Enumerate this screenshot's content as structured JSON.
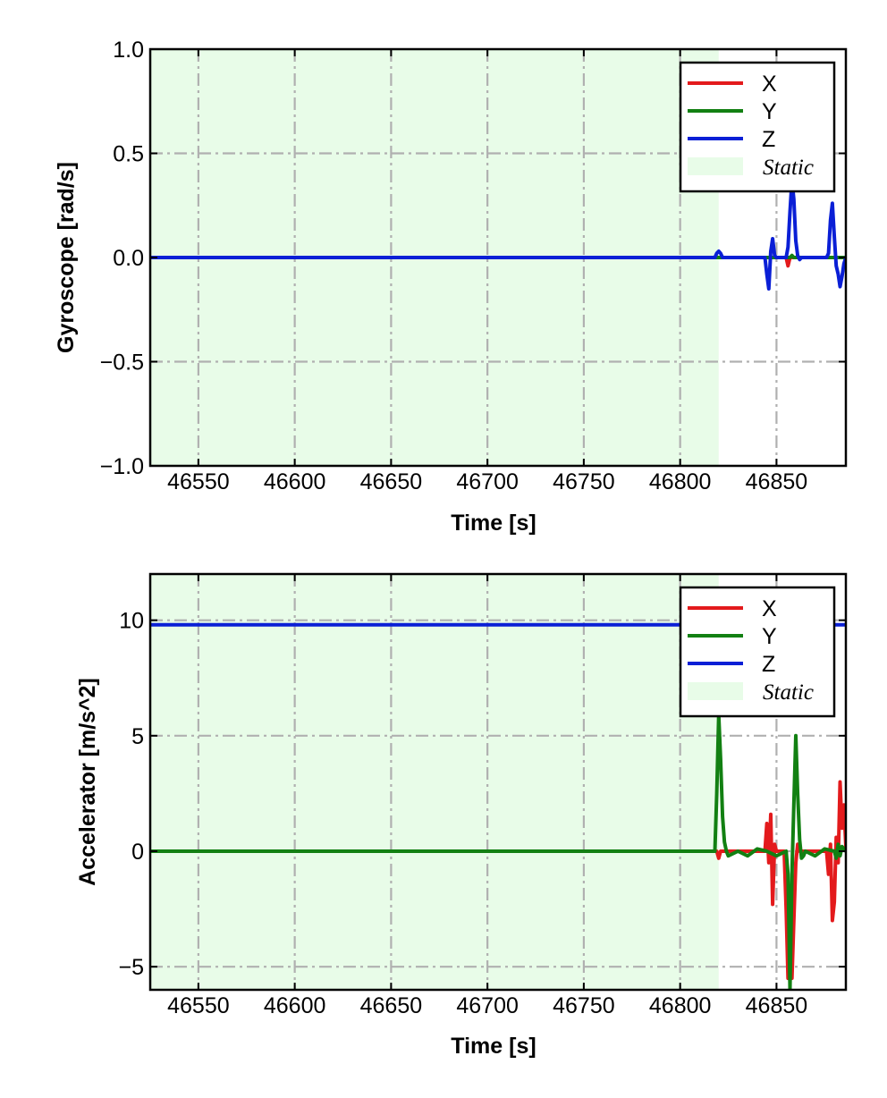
{
  "chart_data": [
    {
      "type": "line",
      "id": "gyro",
      "xlabel": "Time [s]",
      "ylabel": "Gyroscope [rad/s]",
      "xlim": [
        46525,
        46886
      ],
      "ylim": [
        -1.0,
        1.0
      ],
      "x_ticks": [
        46550,
        46600,
        46650,
        46700,
        46750,
        46800,
        46850
      ],
      "x_tick_labels": [
        "46550",
        "46600",
        "46650",
        "46700",
        "46750",
        "46800",
        "46850"
      ],
      "y_ticks": [
        1.0,
        0.5,
        0.0,
        -0.5,
        -1.0
      ],
      "y_tick_labels": [
        "1.0",
        "0.5",
        "0.0",
        "−0.5",
        "−1.0"
      ],
      "grid": true,
      "legend_position": "top-right",
      "static_region": {
        "label": "Static",
        "x_start": 46525,
        "x_end": 46820,
        "color": "#e8fce8"
      },
      "series": [
        {
          "name": "X",
          "color": "#e31a1c",
          "x": [
            46525,
            46820,
            46846,
            46848,
            46850,
            46855,
            46856,
            46857,
            46860,
            46878,
            46880,
            46882,
            46886
          ],
          "y": [
            0.0,
            0.0,
            0.0,
            0.0,
            0.0,
            0.0,
            -0.04,
            0.0,
            0.0,
            0.0,
            0.0,
            0.0,
            0.0
          ]
        },
        {
          "name": "Y",
          "color": "#128012",
          "x": [
            46525,
            46820,
            46857,
            46858,
            46859,
            46886
          ],
          "y": [
            0.0,
            0.0,
            0.0,
            0.01,
            0.0,
            0.0
          ]
        },
        {
          "name": "Z",
          "color": "#0a1fd6",
          "x": [
            46525,
            46818,
            46819,
            46820,
            46821,
            46822,
            46844,
            46845,
            46846,
            46847,
            46848,
            46849,
            46850,
            46855,
            46856,
            46857,
            46858,
            46859,
            46860,
            46861,
            46862,
            46863,
            46876,
            46877,
            46878,
            46879,
            46880,
            46881,
            46882,
            46883,
            46884,
            46885,
            46886
          ],
          "y": [
            0.0,
            0.0,
            0.02,
            0.03,
            0.02,
            0.0,
            0.0,
            -0.08,
            -0.15,
            0.03,
            0.09,
            0.01,
            0.0,
            0.0,
            0.05,
            0.22,
            0.37,
            0.28,
            0.08,
            0.01,
            -0.01,
            0.0,
            0.0,
            0.02,
            0.18,
            0.26,
            0.1,
            -0.04,
            -0.08,
            -0.14,
            -0.09,
            -0.03,
            0.0
          ]
        }
      ]
    },
    {
      "type": "line",
      "id": "accel",
      "xlabel": "Time [s]",
      "ylabel": "Accelerator [m/s^2]",
      "xlim": [
        46525,
        46886
      ],
      "ylim": [
        -6,
        12
      ],
      "x_ticks": [
        46550,
        46600,
        46650,
        46700,
        46750,
        46800,
        46850
      ],
      "x_tick_labels": [
        "46550",
        "46600",
        "46650",
        "46700",
        "46750",
        "46800",
        "46850"
      ],
      "y_ticks": [
        10,
        5,
        0,
        -5
      ],
      "y_tick_labels": [
        "10",
        "5",
        "0",
        "−5"
      ],
      "grid": true,
      "legend_position": "top-right",
      "static_region": {
        "label": "Static",
        "x_start": 46525,
        "x_end": 46820,
        "color": "#e8fce8"
      },
      "series": [
        {
          "name": "X",
          "color": "#e31a1c",
          "x": [
            46525,
            46819,
            46820,
            46821,
            46844,
            46845,
            46846,
            46847,
            46848,
            46849,
            46850,
            46854,
            46855,
            46856,
            46857,
            46858,
            46859,
            46860,
            46861,
            46862,
            46876,
            46877,
            46878,
            46879,
            46880,
            46881,
            46882,
            46883,
            46884,
            46885,
            46886
          ],
          "y": [
            0.0,
            0.0,
            -0.3,
            0.0,
            0.0,
            1.2,
            -0.5,
            1.6,
            -2.3,
            0.3,
            0.0,
            0.0,
            -2.5,
            -5.5,
            -2.0,
            -5.5,
            -3.0,
            -0.5,
            0.3,
            0.0,
            0.0,
            -1.0,
            0.3,
            -3.0,
            -2.2,
            0.6,
            -0.5,
            3.0,
            1.0,
            2.0,
            0.2
          ]
        },
        {
          "name": "Y",
          "color": "#128012",
          "x": [
            46525,
            46818,
            46819,
            46820,
            46821,
            46822,
            46823,
            46824,
            46825,
            46830,
            46835,
            46840,
            46845,
            46850,
            46855,
            46856,
            46857,
            46858,
            46859,
            46860,
            46861,
            46862,
            46863,
            46864,
            46865,
            46870,
            46875,
            46880,
            46881,
            46882,
            46883,
            46884,
            46886
          ],
          "y": [
            0.0,
            0.0,
            2.5,
            5.9,
            4.0,
            1.5,
            0.4,
            0.0,
            -0.2,
            0.0,
            -0.2,
            0.1,
            0.0,
            -0.2,
            0.0,
            -1.0,
            -6.0,
            -1.0,
            2.0,
            5.0,
            2.5,
            0.5,
            -0.3,
            -0.2,
            0.0,
            -0.2,
            0.1,
            0.0,
            -0.3,
            0.3,
            -0.2,
            0.2,
            0.0
          ]
        },
        {
          "name": "Z",
          "color": "#0a1fd6",
          "x": [
            46525,
            46886
          ],
          "y": [
            9.8,
            9.8
          ]
        }
      ]
    }
  ]
}
